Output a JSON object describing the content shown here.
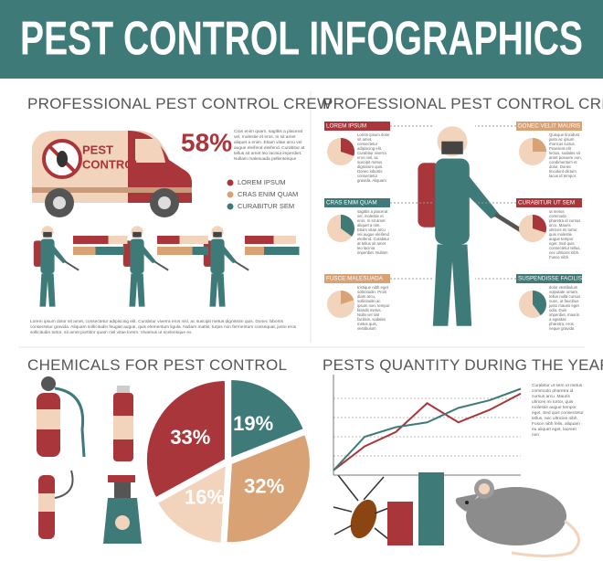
{
  "header": {
    "title": "PEST CONTROL INFOGRAPHICS"
  },
  "crew_stats": {
    "title": "PROFESSIONAL PEST CONTROL CREW",
    "van_label": [
      "PEST",
      "CONTROL"
    ],
    "percent": {
      "value": 58,
      "label": "58%"
    },
    "percent_text": "Cras enim quam, sagittis a placerat vel, molestie et eros. In sit amet aliquet a enim. Etiam vitae arcu vel augue eleifend eleifend. Curabitur at tellus sit amet leo lacinia imperdiet. Nullam malesuada pellentesque",
    "legend": [
      {
        "name": "LOREM IPSUM",
        "color": "#a8363a"
      },
      {
        "name": "CRAS ENIM QUAM",
        "color": "#d9a275"
      },
      {
        "name": "CURABITUR SEM",
        "color": "#3e7b78"
      }
    ],
    "bar_colors": [
      [
        "#a8363a",
        "#f2d3bb"
      ],
      [
        "#d9a275",
        "#3e7b78"
      ]
    ],
    "bar_groups": [
      {
        "top": [
          55,
          30
        ],
        "bottom": [
          35,
          45
        ]
      },
      {
        "top": [
          35,
          45
        ],
        "bottom": [
          55,
          25
        ]
      },
      {
        "top": [
          45,
          35
        ],
        "bottom": [
          30,
          55
        ]
      }
    ],
    "paragraph": "Lorem ipsum dolor sit amet, consectetur adipiscing elit. Curabitur viverra eros nisl, ac suscipit metus dignissim quis. Donec lobortis consectetur gravida. Aliquam sollicitudin feugiat augue, quis elementum ligula. Nullam mattis, turpis non fermentum consequat, justo eros sollicitudin tortor, sit amet porttitor quam nisl vitae lorem. Vivamus ut scelerisque ex."
  },
  "crew_roles": {
    "title": "PROFESSIONAL PEST CONTROL CREW",
    "callouts": [
      {
        "title": "LOREM IPSUM",
        "color": "#a8363a",
        "value": 30,
        "text": "Lorem ipsum dolor sit amet, consectetur adipiscing elit. Curabitur viverra eros nisl, ac suscipit metus dignissim quis. Donec lobortis consectetur gravida. Aliquam"
      },
      {
        "title": "DONEC VELIT MAURIS",
        "color": "#d9a275",
        "value": 25,
        "text": "Quisque tincidunt justo ac ipsum rhoncus luctus. Praesent elit lectus, sodales sit amet posuere non, condimentum et dolor. Donec tincidunt dictum lacus id tempor."
      },
      {
        "title": "CRAS ENIM QUAM",
        "color": "#3e7b78",
        "value": 35,
        "text": "sagittis a placerat vel, molestie et eros. In sit amet aliquet a nim. Etiam vitae arcu vel augue eleifend eleifend. Curabitur at tellus sit amet leo lacinia imperdiet. Nullam"
      },
      {
        "title": "CURABITUR UT SEM",
        "color": "#a8363a",
        "value": 30,
        "text": "ut metus commodo pharetra id cursus arcu. Mauris ultrices mi tortor, quis molestie augue tempor eget. Sed quis consectetur tellus, nec ultricies nibh. Fusce nibh"
      },
      {
        "title": "FUSCE MALESUADA",
        "color": "#d9a275",
        "value": 20,
        "text": "tristique nibh eget sollicitudin. Proin diam arcu, sollicitudin ac ipsum non, tempor blandit metus. Nulla vel nisl facilisis, sodales metus quis, vestibulum"
      },
      {
        "title": "SUSPENDISSE FACILISIS",
        "color": "#3e7b78",
        "value": 40,
        "text": "dolor vestibulum vulputate ornare, tellus nulla cursus nunc, ut faucibus justo mauris eget odio. Duis imperdiet, mauris a egestas pharetra, eros neque gravida"
      }
    ]
  },
  "chemicals": {
    "title": "CHEMICALS FOR PEST CONTROL",
    "chart_data": {
      "type": "pie",
      "values": [
        19,
        32,
        16,
        33
      ],
      "value_labels": [
        "19%",
        "32%",
        "16%",
        "33%"
      ],
      "colors": [
        "#3e7b78",
        "#d9a275",
        "#f2d3bb",
        "#a8363a"
      ]
    }
  },
  "pests": {
    "title": "PESTS QUANTITY DURING THE YEAR",
    "note": "Curabitur ut sem ut metus commodo pharetra id cursus arcu. Mauris ultrices mi tortor, quis molestie augue tempor eget. Sed quis consectetur tellus, nec ultricies nibh. Fusce nibh felis, aliquam eu aliquet eget, laoreet non",
    "chart_data": {
      "type": "line",
      "categories": [
        null,
        null,
        null,
        null,
        null,
        null,
        null
      ],
      "ylim": [
        0,
        100
      ],
      "series": [
        {
          "color": "#a8363a",
          "values": [
            5,
            30,
            45,
            75,
            55,
            68,
            85
          ]
        },
        {
          "color": "#3e7b78",
          "values": [
            5,
            40,
            50,
            55,
            70,
            78,
            90
          ]
        }
      ]
    },
    "bar_chart": {
      "type": "bar",
      "ylim": [
        0,
        100
      ],
      "values": [
        60,
        100
      ],
      "colors": [
        "#a8363a",
        "#3e7b78"
      ]
    }
  }
}
